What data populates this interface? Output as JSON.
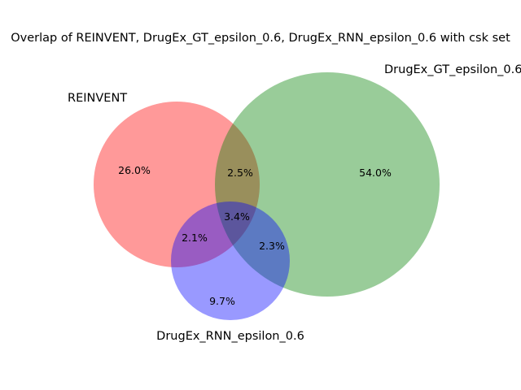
{
  "title": "Overlap of REINVENT, DrugEx_GT_epsilon_0.6, DrugEx_RNN_epsilon_0.6 with csk set",
  "sets": [
    {
      "name": "REINVENT",
      "color": "#ff9999"
    },
    {
      "name": "DrugEx_GT_epsilon_0.6",
      "color": "#99cc99"
    },
    {
      "name": "DrugEx_RNN_epsilon_0.6",
      "color": "#9999ff"
    }
  ],
  "regions": [
    {
      "id": "reinvent-only",
      "label": "26.0%",
      "value": 26.0
    },
    {
      "id": "gt-only",
      "label": "54.0%",
      "value": 54.0
    },
    {
      "id": "rnn-only",
      "label": "9.7%",
      "value": 9.7
    },
    {
      "id": "reinvent-gt",
      "label": "2.5%",
      "value": 2.5
    },
    {
      "id": "reinvent-rnn",
      "label": "2.1%",
      "value": 2.1
    },
    {
      "id": "gt-rnn",
      "label": "2.3%",
      "value": 2.3
    },
    {
      "id": "all-three",
      "label": "3.4%",
      "value": 3.4
    }
  ]
}
